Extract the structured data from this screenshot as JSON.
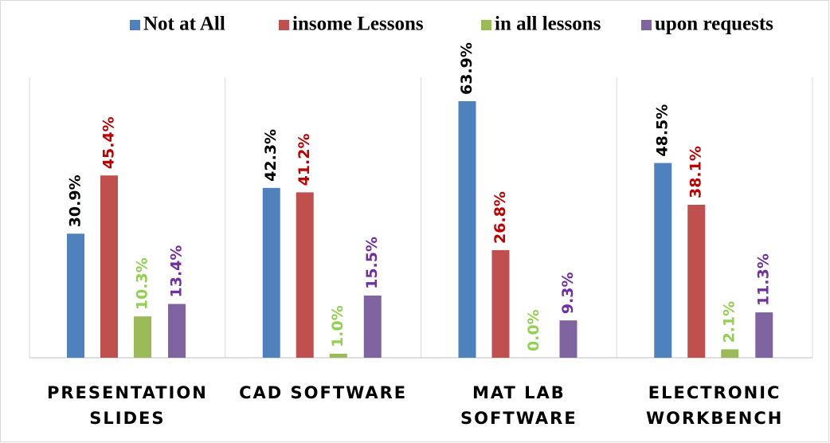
{
  "chart_data": {
    "type": "bar",
    "categories": [
      "PRESENTATION SLIDES",
      "CAD SOFTWARE",
      "MAT LAB SOFTWARE",
      "ELECTRONIC WORKBENCH"
    ],
    "series": [
      {
        "name": "Not at All",
        "color": "#4f81bd",
        "label_color": "#000000",
        "values": [
          30.9,
          42.3,
          63.9,
          48.5
        ],
        "value_labels": [
          "30.9%",
          "42.3%",
          "63.9%",
          "48.5%"
        ]
      },
      {
        "name": "insome Lessons",
        "color": "#c0504d",
        "label_color": "#c00000",
        "values": [
          45.4,
          41.2,
          26.8,
          38.1
        ],
        "value_labels": [
          "45.4%",
          "41.2%",
          "26.8%",
          "38.1%"
        ]
      },
      {
        "name": "in all lessons",
        "color": "#9bbb59",
        "label_color": "#92d050",
        "values": [
          10.3,
          1.0,
          0.0,
          2.1
        ],
        "value_labels": [
          "10.3%",
          "1.0%",
          "0.0%",
          "2.1%"
        ]
      },
      {
        "name": "upon requests",
        "color": "#8064a2",
        "label_color": "#7030a0",
        "values": [
          13.4,
          15.5,
          9.3,
          11.3
        ],
        "value_labels": [
          "13.4%",
          "15.5%",
          "9.3%",
          "11.3%"
        ]
      }
    ],
    "legend": "top"
  }
}
